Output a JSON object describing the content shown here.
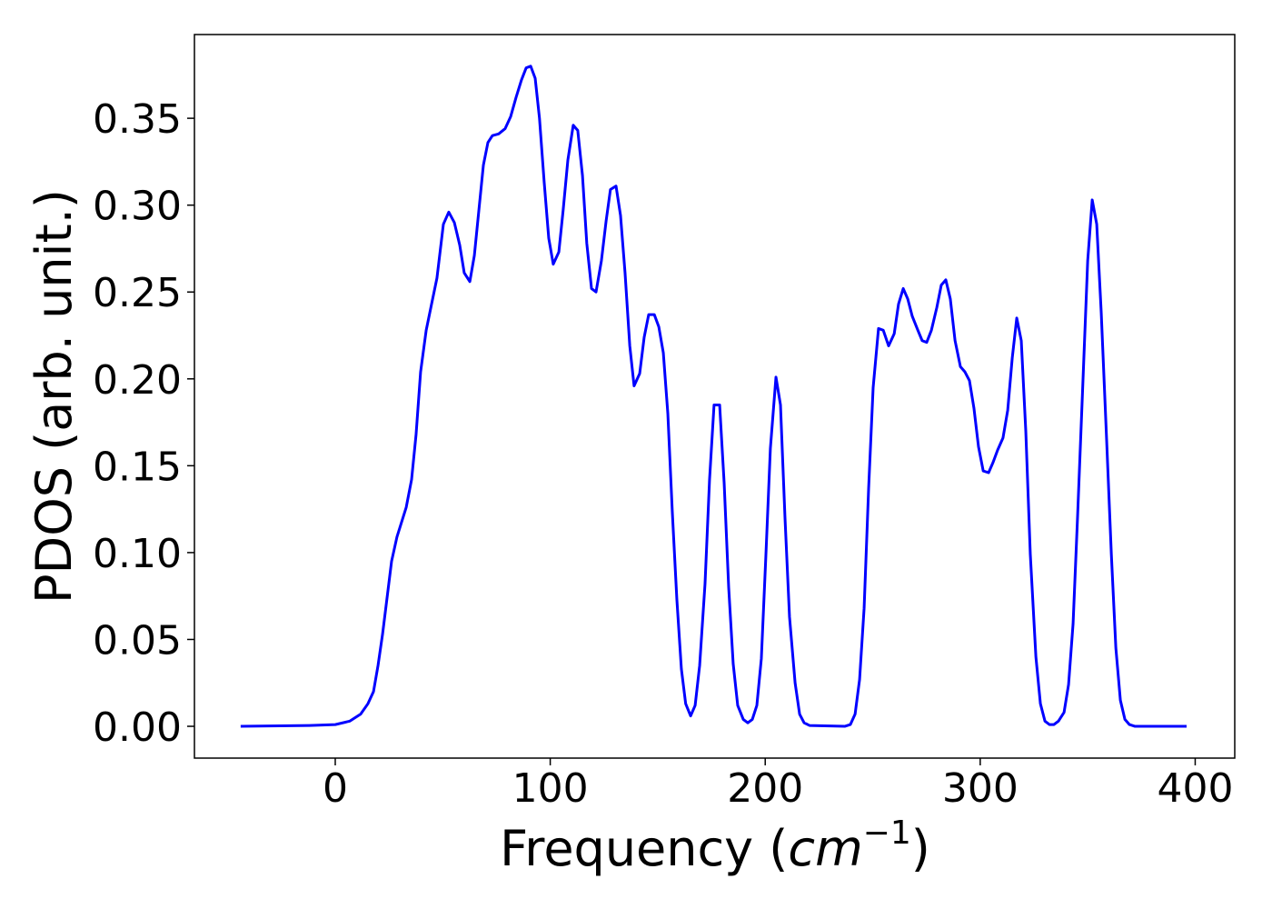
{
  "chart_data": {
    "type": "line",
    "x_label": [
      "Frequency (",
      "cm",
      "−1",
      ")"
    ],
    "y_label": "PDOS (arb. unit.)",
    "color": "#0000ff",
    "x": [
      -44,
      -12,
      0,
      6.8,
      11.8,
      15.2,
      17.8,
      19.9,
      22,
      24,
      26.2,
      28.7,
      33,
      35.5,
      37.6,
      39.7,
      42.3,
      44.8,
      47.3,
      50.3,
      52.8,
      55.4,
      57.9,
      60,
      62.6,
      64.7,
      66.8,
      68.9,
      71,
      73.1,
      76,
      79,
      81.6,
      84.1,
      86.6,
      88.8,
      90.9,
      93,
      95,
      97.2,
      99.3,
      101.4,
      104,
      106,
      108.2,
      110.7,
      112.8,
      115,
      117,
      119.2,
      121.3,
      123.8,
      126,
      128,
      130.6,
      132.7,
      134.8,
      137,
      139,
      141.6,
      143.7,
      145.8,
      148.4,
      150.5,
      152.6,
      154.7,
      156.8,
      158.9,
      161,
      163,
      165.3,
      167.4,
      169.5,
      172,
      174.1,
      176.2,
      178.8,
      180.9,
      183,
      185.1,
      187.2,
      189.8,
      191.9,
      194,
      196.1,
      198.2,
      200.3,
      202.4,
      205,
      207.1,
      209.2,
      211.3,
      213.9,
      216,
      218.1,
      220.6,
      237,
      239.6,
      241.8,
      243.9,
      246,
      248.1,
      250.2,
      252.7,
      254.9,
      257.4,
      260,
      262,
      264.2,
      266.3,
      268.4,
      271,
      273,
      275.1,
      277.3,
      279.8,
      281.9,
      284,
      286.1,
      288.3,
      290.8,
      292.9,
      295,
      297.1,
      299.2,
      301.4,
      303.9,
      306,
      308.1,
      310.6,
      312.8,
      314.9,
      317,
      319.1,
      321.2,
      323.3,
      325.9,
      328,
      330.1,
      332.2,
      334.3,
      336.4,
      339,
      341.1,
      343.2,
      345.3,
      347.8,
      350,
      352.1,
      354.2,
      356.3,
      358.8,
      361,
      363.1,
      365.2,
      367.3,
      369.4,
      372,
      396
    ],
    "values": [
      0,
      0.0005,
      0.001,
      0.003,
      0.007,
      0.013,
      0.02,
      0.035,
      0.053,
      0.073,
      0.095,
      0.109,
      0.126,
      0.142,
      0.168,
      0.204,
      0.228,
      0.243,
      0.258,
      0.289,
      0.296,
      0.29,
      0.277,
      0.261,
      0.256,
      0.271,
      0.297,
      0.323,
      0.336,
      0.34,
      0.341,
      0.344,
      0.351,
      0.362,
      0.372,
      0.379,
      0.38,
      0.373,
      0.35,
      0.313,
      0.281,
      0.266,
      0.273,
      0.297,
      0.326,
      0.346,
      0.343,
      0.317,
      0.278,
      0.252,
      0.25,
      0.268,
      0.291,
      0.309,
      0.311,
      0.294,
      0.261,
      0.219,
      0.196,
      0.203,
      0.224,
      0.237,
      0.237,
      0.23,
      0.215,
      0.18,
      0.123,
      0.073,
      0.033,
      0.013,
      0.006,
      0.012,
      0.035,
      0.082,
      0.142,
      0.185,
      0.185,
      0.14,
      0.08,
      0.036,
      0.012,
      0.004,
      0.002,
      0.004,
      0.012,
      0.039,
      0.098,
      0.16,
      0.201,
      0.185,
      0.12,
      0.063,
      0.025,
      0.007,
      0.002,
      0.0005,
      0,
      0.001,
      0.007,
      0.027,
      0.068,
      0.137,
      0.195,
      0.229,
      0.228,
      0.219,
      0.226,
      0.243,
      0.252,
      0.246,
      0.236,
      0.228,
      0.222,
      0.221,
      0.228,
      0.241,
      0.254,
      0.257,
      0.246,
      0.222,
      0.207,
      0.204,
      0.199,
      0.183,
      0.161,
      0.147,
      0.146,
      0.152,
      0.159,
      0.166,
      0.182,
      0.212,
      0.235,
      0.222,
      0.17,
      0.099,
      0.04,
      0.013,
      0.003,
      0.001,
      0.001,
      0.003,
      0.008,
      0.024,
      0.059,
      0.121,
      0.199,
      0.268,
      0.303,
      0.289,
      0.238,
      0.165,
      0.099,
      0.045,
      0.015,
      0.004,
      0.001,
      0,
      0
    ],
    "xlim": [
      -65.5,
      418.4
    ],
    "ylim": [
      -0.0183,
      0.3982
    ],
    "xticks": [
      0,
      100,
      200,
      300,
      400
    ],
    "yticks": [
      {
        "value": 0,
        "label": "0.00"
      },
      0.05,
      {
        "value": 0.1,
        "label": "0.10"
      },
      0.15,
      {
        "value": 0.2,
        "label": "0.20"
      },
      0.25,
      {
        "value": 0.3,
        "label": "0.30"
      },
      0.35
    ]
  }
}
